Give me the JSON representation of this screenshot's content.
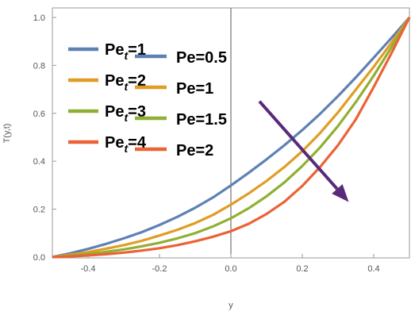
{
  "chart_data": {
    "type": "line",
    "title": "",
    "xlabel": "y",
    "ylabel": "T(y,t)",
    "xlim": [
      -0.5,
      0.5
    ],
    "ylim": [
      0.0,
      1.0
    ],
    "xticks": [
      "-0.4",
      "-0.2",
      "0.0",
      "0.2",
      "0.4"
    ],
    "yticks": [
      "0.0",
      "0.2",
      "0.4",
      "0.6",
      "0.8",
      "1.0"
    ],
    "grid": false,
    "legend_position": "left",
    "x": [
      -0.5,
      -0.45,
      -0.4,
      -0.35,
      -0.3,
      -0.25,
      -0.2,
      -0.15,
      -0.1,
      -0.05,
      0.0,
      0.05,
      0.1,
      0.15,
      0.2,
      0.25,
      0.3,
      0.35,
      0.4,
      0.45,
      0.5
    ],
    "series": [
      {
        "name": "Pe_t=1, Pe=0.5",
        "color": "#5E81B5",
        "values": [
          0.0,
          0.016,
          0.034,
          0.055,
          0.078,
          0.104,
          0.134,
          0.168,
          0.206,
          0.249,
          0.299,
          0.352,
          0.408,
          0.467,
          0.53,
          0.598,
          0.672,
          0.75,
          0.832,
          0.915,
          1.0
        ]
      },
      {
        "name": "Pe_t=2, Pe=1",
        "color": "#E19C24",
        "values": [
          0.0,
          0.01,
          0.021,
          0.035,
          0.05,
          0.068,
          0.09,
          0.114,
          0.142,
          0.176,
          0.219,
          0.266,
          0.318,
          0.376,
          0.442,
          0.518,
          0.604,
          0.699,
          0.794,
          0.895,
          1.0
        ]
      },
      {
        "name": "Pe_t=3, Pe=1.5",
        "color": "#8FB032",
        "values": [
          0.0,
          0.006,
          0.013,
          0.022,
          0.032,
          0.045,
          0.06,
          0.078,
          0.1,
          0.128,
          0.162,
          0.204,
          0.254,
          0.312,
          0.38,
          0.458,
          0.547,
          0.647,
          0.757,
          0.876,
          1.0
        ]
      },
      {
        "name": "Pe_t=4, Pe=2",
        "color": "#EB6235",
        "values": [
          0.0,
          0.003,
          0.007,
          0.012,
          0.019,
          0.027,
          0.037,
          0.05,
          0.066,
          0.085,
          0.108,
          0.139,
          0.18,
          0.231,
          0.297,
          0.376,
          0.467,
          0.575,
          0.71,
          0.852,
          1.0
        ]
      }
    ],
    "legend": [
      {
        "main": "Pe",
        "sub": "t",
        "rest": "=1",
        "color": "#5E81B5",
        "label2": "Pe=0.5"
      },
      {
        "main": "Pe",
        "sub": "t",
        "rest": "=2",
        "color": "#E19C24",
        "label2": "Pe=1"
      },
      {
        "main": "Pe",
        "sub": "t",
        "rest": "=3",
        "color": "#8FB032",
        "label2": "Pe=1.5"
      },
      {
        "main": "Pe",
        "sub": "t",
        "rest": "=4",
        "color": "#EB6235",
        "label2": "Pe=2"
      }
    ],
    "arrow": {
      "from": [
        0.08,
        0.65
      ],
      "to": [
        0.33,
        0.23
      ],
      "color": "#5A2A7A"
    }
  }
}
